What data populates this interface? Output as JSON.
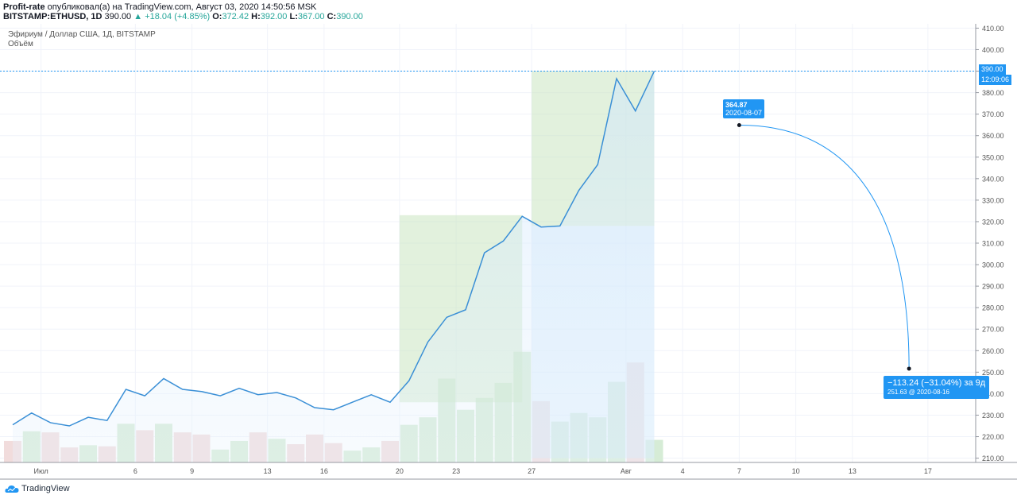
{
  "header": {
    "author": "Profit-rate",
    "published_text": "опубликовал(а) на TradingView.com, Август 03, 2020 14:50:56 MSK",
    "symbol": "BITSTAMP:ETHUSD, 1D",
    "last": "390.00",
    "change": "▲ +18.04 (+4.85%)",
    "o_label": "O:",
    "o_value": "372.42",
    "h_label": "H:",
    "h_value": "392.00",
    "l_label": "L:",
    "l_value": "367.00",
    "c_label": "C:",
    "c_value": "390.00"
  },
  "legend": {
    "series_title": "Эфириум / Доллар США, 1Д, BITSTAMP",
    "volume_title": "Объём"
  },
  "annotations": {
    "target_value": "364.87",
    "target_date": "2020-08-07",
    "projection_main": "−113.24 (−31.04%) за 9д",
    "projection_sub": "251.63 @ 2020-08-16"
  },
  "price_tags": {
    "last_price": "390.00",
    "countdown": "12:09:06"
  },
  "footer": {
    "brand": "TradingView"
  },
  "colors": {
    "line": "#3a8fd6",
    "accent": "#2196f3",
    "vol_up": "#d6ecd6",
    "vol_down": "#f1dcdc",
    "zone_green": "#c5e3bb",
    "zone_blue": "#cfe6fb"
  },
  "chart_data": {
    "type": "line",
    "y_range": [
      208,
      412
    ],
    "x_range": [
      0,
      52
    ],
    "y_ticks": [
      "210.00",
      "220.00",
      "230.00",
      "240.00",
      "250.00",
      "260.00",
      "270.00",
      "280.00",
      "290.00",
      "300.00",
      "310.00",
      "320.00",
      "330.00",
      "340.00",
      "350.00",
      "360.00",
      "370.00",
      "380.00",
      "390.00",
      "400.00",
      "410.00"
    ],
    "x_ticks": [
      {
        "label": "Июл",
        "i": 1.5
      },
      {
        "label": "6",
        "i": 6.5
      },
      {
        "label": "9",
        "i": 9.5
      },
      {
        "label": "13",
        "i": 13.5
      },
      {
        "label": "16",
        "i": 16.5
      },
      {
        "label": "20",
        "i": 20.5
      },
      {
        "label": "23",
        "i": 23.5
      },
      {
        "label": "27",
        "i": 27.5
      },
      {
        "label": "Авг",
        "i": 32.5
      },
      {
        "label": "4",
        "i": 35.5
      },
      {
        "label": "7",
        "i": 38.5
      },
      {
        "label": "10",
        "i": 41.5
      },
      {
        "label": "13",
        "i": 44.5
      },
      {
        "label": "17",
        "i": 48.5
      }
    ],
    "close": [
      225.5,
      231,
      226.5,
      225,
      229,
      227.5,
      242,
      239,
      247,
      242,
      241,
      239,
      242.5,
      239.5,
      240.5,
      238,
      233.5,
      232.5,
      236,
      239.5,
      236,
      246,
      264,
      275.5,
      279,
      305.5,
      311,
      322.5,
      317.5,
      318,
      334.5,
      346.5,
      386.5,
      371.5,
      390
    ],
    "volume_dir": [
      "down",
      "up",
      "down",
      "down",
      "up",
      "down",
      "up",
      "down",
      "up",
      "down",
      "down",
      "up",
      "up",
      "down",
      "up",
      "down",
      "down",
      "down",
      "up",
      "up",
      "down",
      "up",
      "up",
      "up",
      "up",
      "up",
      "up",
      "up",
      "down",
      "up",
      "up",
      "up",
      "up",
      "down",
      "up"
    ],
    "volume_top": [
      218,
      222.5,
      222,
      215,
      216,
      215.5,
      226,
      223,
      226,
      222,
      221,
      214,
      218,
      222,
      219,
      216.5,
      221,
      217,
      213.5,
      215,
      218,
      225.5,
      229,
      247,
      232.5,
      238,
      245,
      259.5,
      236.5,
      227,
      231,
      229,
      245.5,
      254.5,
      218.5
    ],
    "last_price": 390,
    "zones": [
      {
        "color": "green",
        "i0": 20.5,
        "i1": 27,
        "y_low": 236,
        "y_high": 323
      },
      {
        "color": "green",
        "i0": 27.5,
        "i1": 34,
        "y_low": 318,
        "y_high": 390
      },
      {
        "color": "blue",
        "i0": 27.5,
        "i1": 34,
        "y_low": 210,
        "y_high": 318
      }
    ],
    "projection": {
      "from_i": 38.5,
      "from_y": 364.87,
      "to_i": 47.5,
      "to_y": 251.63
    }
  }
}
